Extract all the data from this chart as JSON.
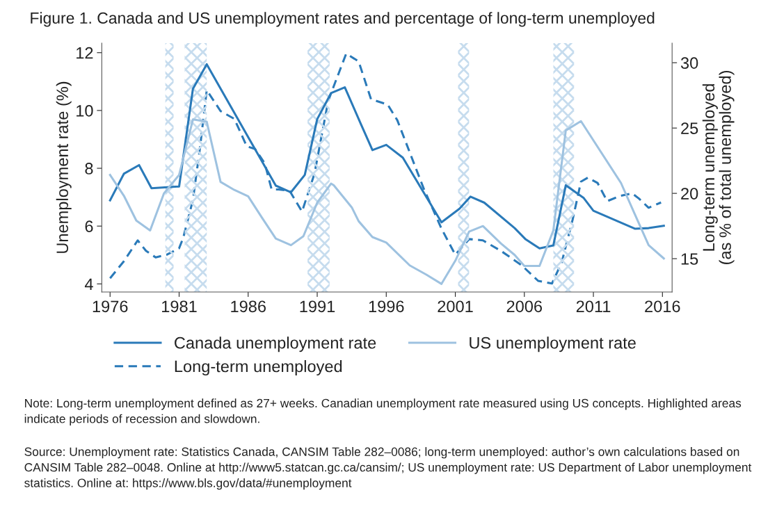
{
  "chart_data": {
    "type": "line",
    "title": "Figure 1. Canada and US unemployment rates and percentage of long-term unemployed",
    "ylabel": "Unemployment rate (%)",
    "y2label": "Long-term unemployed\n(as % of total unemployed)",
    "xlim": [
      1975.4,
      2016.7
    ],
    "xticks": [
      1976,
      1981,
      1986,
      1991,
      1996,
      2001,
      2006,
      2011,
      2016
    ],
    "ylim": [
      3.72,
      12.33
    ],
    "yticks": [
      4,
      6,
      8,
      10,
      12
    ],
    "y2lim": [
      12.45,
      31.5
    ],
    "y2ticks": [
      15,
      20,
      25,
      30
    ],
    "grid": false,
    "legend": "bottom",
    "marker": "none",
    "series": [
      {
        "name": "Canada unemployment rate",
        "color": "#2a7ab9",
        "line_style": "solid",
        "x": [
          1976,
          1977,
          1978.1,
          1979,
          1981,
          1982,
          1983,
          1988,
          1989.1,
          1990.1,
          1991,
          1992,
          1993,
          1994.2,
          1995,
          1996,
          1997.2,
          2000,
          2001.3,
          2002.1,
          2003.1,
          2005.3,
          2006.1,
          2007.1,
          2008.1,
          2009,
          2010.3,
          2011,
          2014,
          2015,
          2016.1
        ],
        "values": [
          6.89,
          7.81,
          8.11,
          7.31,
          7.37,
          10.75,
          11.6,
          7.4,
          7.17,
          7.77,
          9.7,
          10.6,
          10.8,
          9.49,
          8.63,
          8.81,
          8.37,
          6.13,
          6.6,
          7.02,
          6.81,
          5.93,
          5.54,
          5.23,
          5.33,
          7.41,
          6.97,
          6.53,
          5.91,
          5.93,
          6.01
        ]
      },
      {
        "name": "Long-term unemployed",
        "color": "#2a7ab9",
        "line_style": "dashed",
        "axis": "y2",
        "x": [
          1976,
          1977,
          1978,
          1978.6,
          1979.3,
          1980.1,
          1981,
          1981.3,
          1982,
          1982.5,
          1983,
          1984,
          1985,
          1985.9,
          1986.5,
          1987.2,
          1987.7,
          1988.2,
          1989,
          1989.9,
          1990.8,
          1991.8,
          1993.1,
          1994,
          1994.9,
          1996.1,
          1996.8,
          1998.7,
          2000,
          2001,
          2002,
          2003,
          2004.3,
          2005.8,
          2007,
          2008,
          2008.7,
          2009.5,
          2010.1,
          2010.6,
          2011.3,
          2012,
          2012.9,
          2013.8,
          2014.3,
          2015,
          2015.9
        ],
        "values": [
          13.5,
          14.8,
          16.4,
          15.6,
          15.1,
          15.3,
          15.8,
          16.6,
          19.5,
          23.4,
          27.9,
          26.3,
          25.7,
          23.6,
          23.4,
          22.3,
          20.3,
          20.3,
          20.2,
          18.6,
          21.5,
          27.1,
          30.7,
          30.1,
          27.2,
          26.8,
          25.6,
          20.4,
          17.3,
          15.3,
          16.5,
          16.4,
          15.6,
          14.5,
          13.3,
          13.1,
          14.7,
          18.0,
          20.9,
          21.2,
          20.8,
          19.4,
          19.8,
          20.0,
          19.6,
          18.9,
          19.3
        ]
      },
      {
        "name": "US unemployment rate",
        "color": "#9ec2e0",
        "line_style": "solid",
        "x": [
          1976,
          1977,
          1977.9,
          1978.9,
          1979.9,
          1981,
          1982,
          1983,
          1984,
          1985,
          1986,
          1987,
          1988,
          1989.1,
          1990,
          1991,
          1992,
          1992.2,
          1993.5,
          1994,
          1995,
          1996,
          1997.7,
          1998.9,
          2000,
          2001,
          2002,
          2003,
          2004.3,
          2005.3,
          2006,
          2007.1,
          2008.1,
          2009,
          2010.1,
          2013,
          2014,
          2015,
          2016.1
        ],
        "values": [
          7.77,
          7.05,
          6.19,
          5.85,
          7.13,
          7.77,
          9.69,
          9.61,
          7.53,
          7.25,
          7.03,
          6.29,
          5.57,
          5.34,
          5.65,
          6.81,
          7.47,
          7.41,
          6.65,
          6.17,
          5.62,
          5.43,
          4.64,
          4.32,
          4.0,
          4.8,
          5.81,
          6.0,
          5.4,
          5.0,
          4.62,
          4.62,
          5.85,
          9.31,
          9.63,
          7.49,
          6.41,
          5.34,
          4.88
        ]
      }
    ],
    "bands": [
      {
        "axis": "x",
        "from": 1980.0,
        "to": 1980.6,
        "color": "#c6dcee"
      },
      {
        "axis": "x",
        "from": 1981.4,
        "to": 1983.0,
        "color": "#c6dcee"
      },
      {
        "axis": "x",
        "from": 1990.3,
        "to": 1991.9,
        "color": "#c6dcee"
      },
      {
        "axis": "x",
        "from": 2001.2,
        "to": 2002.0,
        "color": "#c6dcee"
      },
      {
        "axis": "x",
        "from": 2008.1,
        "to": 2009.6,
        "color": "#c6dcee"
      }
    ],
    "annotations": [
      "Note: Long-term unemployment defined as 27+ weeks. Canadian unemployment rate measured using US concepts. Highlighted areas indicate periods of recession and slowdown.",
      "Source: Unemployment rate: Statistics Canada, CANSIM Table 282–0086; long-term unemployed: author’s own calculations based on CANSIM Table 282–0048. Online at http://www5.statcan.gc.ca/cansim/; US unemployment rate: US Department of Labor unemployment statistics. Online at: https://www.bls.gov/data/#unemployment"
    ]
  }
}
